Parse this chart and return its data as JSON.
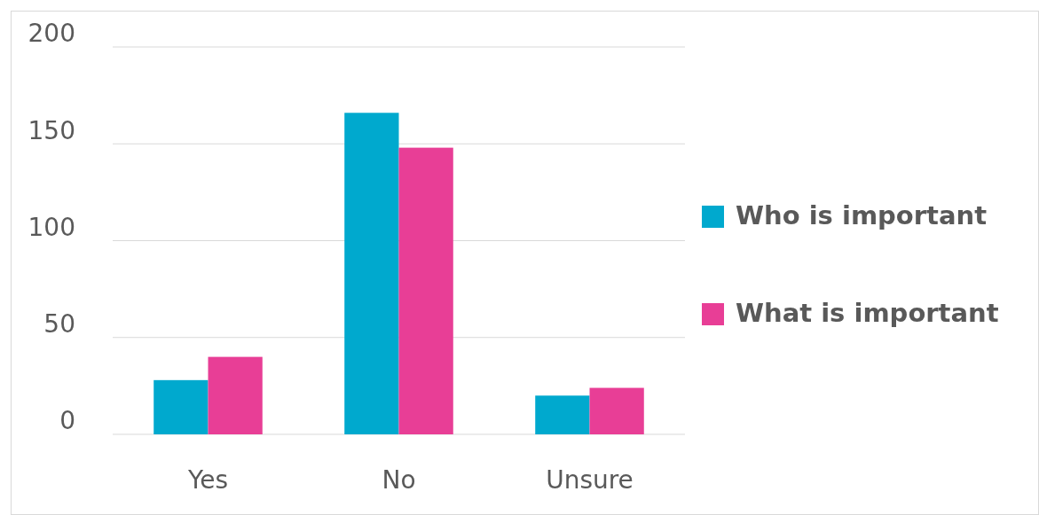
{
  "chart_data": {
    "type": "bar",
    "categories": [
      "Yes",
      "No",
      "Unsure"
    ],
    "series": [
      {
        "name": "Who is important",
        "color": "#00a9ce",
        "values": [
          28,
          166,
          20
        ]
      },
      {
        "name": "What is important",
        "color": "#e83e96",
        "values": [
          40,
          148,
          24
        ]
      }
    ],
    "ylim": [
      0,
      200
    ],
    "yticks": [
      0,
      50,
      100,
      150,
      200
    ],
    "grid": "y",
    "legend": "right"
  }
}
